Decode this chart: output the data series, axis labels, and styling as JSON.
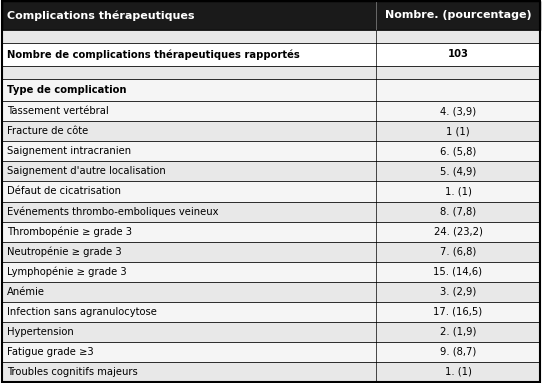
{
  "header": [
    "Complications thérapeutiques",
    "Nombre. (pourcentage)"
  ],
  "rows": [
    {
      "label": "",
      "value": "",
      "type": "empty"
    },
    {
      "label": "Nombre de complications thérapeutiques rapportés",
      "value": "103",
      "type": "bold"
    },
    {
      "label": "",
      "value": "",
      "type": "empty"
    },
    {
      "label": "Type de complication",
      "value": "",
      "type": "section"
    },
    {
      "label": "Tassement vertébral",
      "value": "4. (3,9)",
      "type": "data"
    },
    {
      "label": "Fracture de côte",
      "value": "1 (1)",
      "type": "data"
    },
    {
      "label": "Saignement intracranien",
      "value": "6. (5,8)",
      "type": "data"
    },
    {
      "label": "Saignement d'autre localisation",
      "value": "5. (4,9)",
      "type": "data"
    },
    {
      "label": "Défaut de cicatrisation",
      "value": "1. (1)",
      "type": "data"
    },
    {
      "label": "Evénements thrombo-emboliques veineux",
      "value": "8. (7,8)",
      "type": "data"
    },
    {
      "label": "Thrombopénie ≥ grade 3",
      "value": "24. (23,2)",
      "type": "data"
    },
    {
      "label": "Neutropénie ≥ grade 3",
      "value": "7. (6,8)",
      "type": "data"
    },
    {
      "label": "Lymphopénie ≥ grade 3",
      "value": "15. (14,6)",
      "type": "data"
    },
    {
      "label": "Anémie",
      "value": "3. (2,9)",
      "type": "data"
    },
    {
      "label": "Infection sans agranulocytose",
      "value": "17. (16,5)",
      "type": "data"
    },
    {
      "label": "Hypertension",
      "value": "2. (1,9)",
      "type": "data"
    },
    {
      "label": "Fatigue grade ≥3",
      "value": "9. (8,7)",
      "type": "data"
    },
    {
      "label": "Troubles cognitifs majeurs",
      "value": "1. (1)",
      "type": "data"
    }
  ],
  "header_bg": "#1a1a1a",
  "header_fg": "#ffffff",
  "odd_bg": "#e8e8e8",
  "even_bg": "#f5f5f5",
  "bold_bg": "#ffffff",
  "empty_bg": "#e8e8e8",
  "section_bg": "#f5f5f5",
  "border_color": "#000000",
  "col_split": 0.695,
  "header_fontsize": 8.0,
  "data_fontsize": 7.2
}
